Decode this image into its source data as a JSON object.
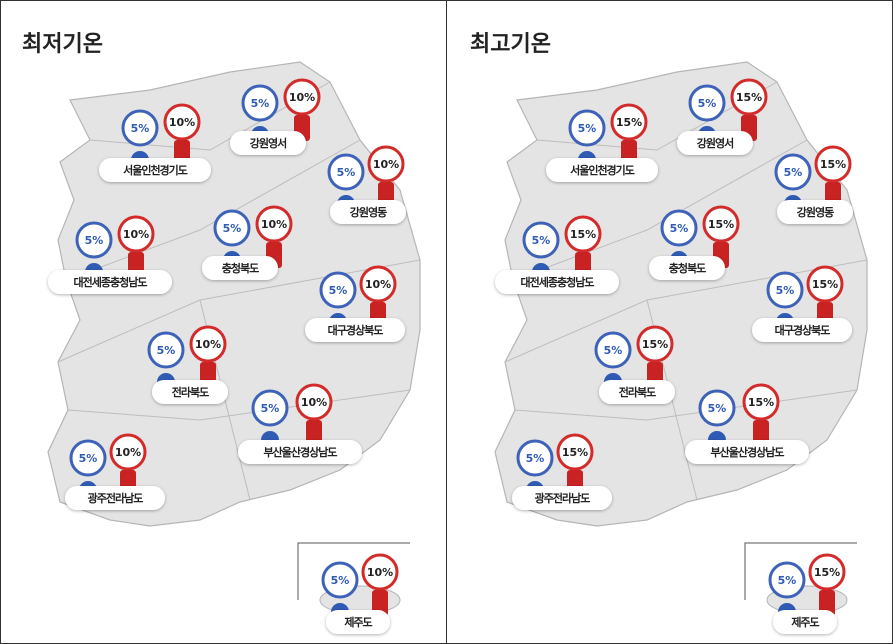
{
  "panels": [
    {
      "title": "최저기온",
      "regions": [
        {
          "name": "서울인천경기도",
          "low": "5%",
          "high": "10%"
        },
        {
          "name": "강원영서",
          "low": "5%",
          "high": "10%"
        },
        {
          "name": "강원영동",
          "low": "5%",
          "high": "10%"
        },
        {
          "name": "대전세종충청남도",
          "low": "5%",
          "high": "10%"
        },
        {
          "name": "충청북도",
          "low": "5%",
          "high": "10%"
        },
        {
          "name": "대구경상북도",
          "low": "5%",
          "high": "10%"
        },
        {
          "name": "전라북도",
          "low": "5%",
          "high": "10%"
        },
        {
          "name": "부산울산경상남도",
          "low": "5%",
          "high": "10%"
        },
        {
          "name": "광주전라남도",
          "low": "5%",
          "high": "10%"
        },
        {
          "name": "제주도",
          "low": "5%",
          "high": "10%"
        }
      ]
    },
    {
      "title": "최고기온",
      "regions": [
        {
          "name": "서울인천경기도",
          "low": "5%",
          "high": "15%"
        },
        {
          "name": "강원영서",
          "low": "5%",
          "high": "15%"
        },
        {
          "name": "강원영동",
          "low": "5%",
          "high": "15%"
        },
        {
          "name": "대전세종충청남도",
          "low": "5%",
          "high": "15%"
        },
        {
          "name": "충청북도",
          "low": "5%",
          "high": "15%"
        },
        {
          "name": "대구경상북도",
          "low": "5%",
          "high": "15%"
        },
        {
          "name": "전라북도",
          "low": "5%",
          "high": "15%"
        },
        {
          "name": "부산울산경상남도",
          "low": "5%",
          "high": "15%"
        },
        {
          "name": "광주전라남도",
          "low": "5%",
          "high": "15%"
        },
        {
          "name": "제주도",
          "low": "5%",
          "high": "15%"
        }
      ]
    }
  ]
}
